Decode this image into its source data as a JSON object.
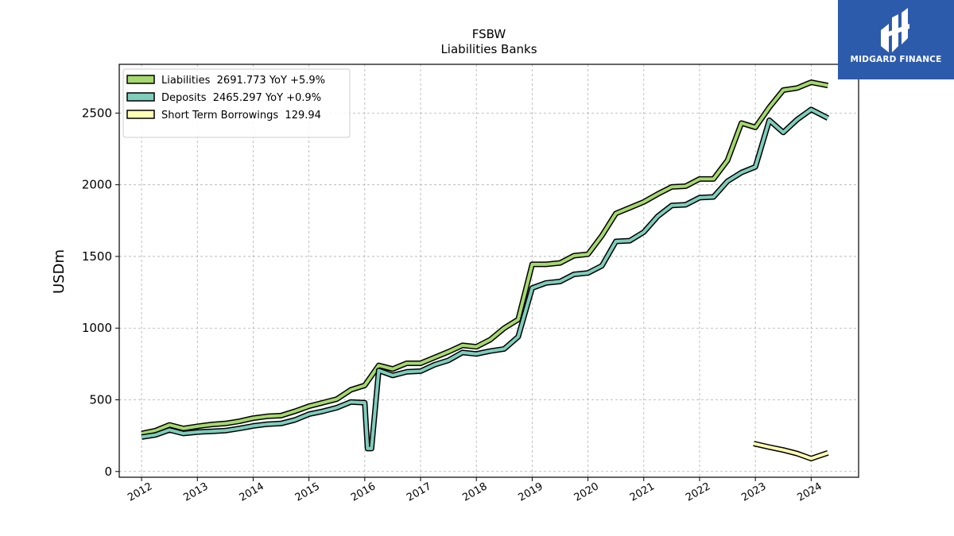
{
  "brand": {
    "name": "MIDGARD FINANCE",
    "bg_color": "#2d5bab"
  },
  "chart_data": {
    "type": "line",
    "title": "FSBW",
    "subtitle": "Liabilities Banks",
    "ylabel": "USDm",
    "xlabel": "",
    "xlim": [
      2011.6,
      2024.85
    ],
    "ylim": [
      -40,
      2840
    ],
    "yticks": [
      0,
      500,
      1000,
      1500,
      2000,
      2500
    ],
    "xticks": [
      "2012",
      "2013",
      "2014",
      "2015",
      "2016",
      "2017",
      "2018",
      "2019",
      "2020",
      "2021",
      "2022",
      "2023",
      "2024"
    ],
    "grid": true,
    "legend_position": "top-left",
    "series": [
      {
        "name": "Liabilities  2691.773 YoY +5.9%",
        "color": "#a6d86e",
        "points": [
          [
            2012.0,
            265
          ],
          [
            2012.25,
            285
          ],
          [
            2012.5,
            325
          ],
          [
            2012.75,
            300
          ],
          [
            2013.0,
            315
          ],
          [
            2013.25,
            328
          ],
          [
            2013.5,
            335
          ],
          [
            2013.75,
            350
          ],
          [
            2014.0,
            372
          ],
          [
            2014.25,
            385
          ],
          [
            2014.5,
            390
          ],
          [
            2014.75,
            420
          ],
          [
            2015.0,
            455
          ],
          [
            2015.25,
            480
          ],
          [
            2015.5,
            505
          ],
          [
            2015.75,
            570
          ],
          [
            2016.0,
            600
          ],
          [
            2016.25,
            740
          ],
          [
            2016.5,
            715
          ],
          [
            2016.75,
            755
          ],
          [
            2017.0,
            755
          ],
          [
            2017.25,
            795
          ],
          [
            2017.5,
            835
          ],
          [
            2017.75,
            880
          ],
          [
            2018.0,
            870
          ],
          [
            2018.25,
            920
          ],
          [
            2018.5,
            1000
          ],
          [
            2018.75,
            1060
          ],
          [
            2019.0,
            1445
          ],
          [
            2019.25,
            1445
          ],
          [
            2019.5,
            1455
          ],
          [
            2019.75,
            1505
          ],
          [
            2020.0,
            1515
          ],
          [
            2020.25,
            1645
          ],
          [
            2020.5,
            1800
          ],
          [
            2020.75,
            1840
          ],
          [
            2021.0,
            1880
          ],
          [
            2021.25,
            1935
          ],
          [
            2021.5,
            1985
          ],
          [
            2021.75,
            1990
          ],
          [
            2022.0,
            2040
          ],
          [
            2022.25,
            2040
          ],
          [
            2022.5,
            2170
          ],
          [
            2022.75,
            2430
          ],
          [
            2023.0,
            2400
          ],
          [
            2023.25,
            2540
          ],
          [
            2023.5,
            2660
          ],
          [
            2023.75,
            2675
          ],
          [
            2024.0,
            2715
          ],
          [
            2024.3,
            2692
          ]
        ]
      },
      {
        "name": "Deposits  2465.297 YoY +0.9%",
        "color": "#7fcdbb",
        "points": [
          [
            2012.0,
            240
          ],
          [
            2012.25,
            255
          ],
          [
            2012.5,
            290
          ],
          [
            2012.75,
            265
          ],
          [
            2013.0,
            275
          ],
          [
            2013.25,
            280
          ],
          [
            2013.5,
            285
          ],
          [
            2013.75,
            300
          ],
          [
            2014.0,
            318
          ],
          [
            2014.25,
            330
          ],
          [
            2014.5,
            335
          ],
          [
            2014.75,
            360
          ],
          [
            2015.0,
            400
          ],
          [
            2015.25,
            420
          ],
          [
            2015.5,
            445
          ],
          [
            2015.75,
            485
          ],
          [
            2016.0,
            480
          ],
          [
            2016.05,
            160
          ],
          [
            2016.12,
            160
          ],
          [
            2016.25,
            705
          ],
          [
            2016.5,
            670
          ],
          [
            2016.75,
            695
          ],
          [
            2017.0,
            700
          ],
          [
            2017.25,
            745
          ],
          [
            2017.5,
            775
          ],
          [
            2017.75,
            830
          ],
          [
            2018.0,
            820
          ],
          [
            2018.25,
            840
          ],
          [
            2018.5,
            855
          ],
          [
            2018.75,
            940
          ],
          [
            2019.0,
            1280
          ],
          [
            2019.25,
            1315
          ],
          [
            2019.5,
            1325
          ],
          [
            2019.75,
            1375
          ],
          [
            2020.0,
            1385
          ],
          [
            2020.25,
            1435
          ],
          [
            2020.5,
            1605
          ],
          [
            2020.75,
            1610
          ],
          [
            2021.0,
            1670
          ],
          [
            2021.25,
            1780
          ],
          [
            2021.5,
            1855
          ],
          [
            2021.75,
            1860
          ],
          [
            2022.0,
            1910
          ],
          [
            2022.25,
            1915
          ],
          [
            2022.5,
            2025
          ],
          [
            2022.75,
            2085
          ],
          [
            2023.0,
            2125
          ],
          [
            2023.25,
            2450
          ],
          [
            2023.5,
            2365
          ],
          [
            2023.75,
            2455
          ],
          [
            2024.0,
            2525
          ],
          [
            2024.3,
            2465
          ]
        ]
      },
      {
        "name": "Short Term Borrowings  129.94",
        "color": "#ffffb3",
        "points": [
          [
            2022.97,
            195
          ],
          [
            2023.25,
            170
          ],
          [
            2023.5,
            150
          ],
          [
            2023.75,
            125
          ],
          [
            2024.0,
            90
          ],
          [
            2024.3,
            130
          ]
        ]
      }
    ]
  }
}
